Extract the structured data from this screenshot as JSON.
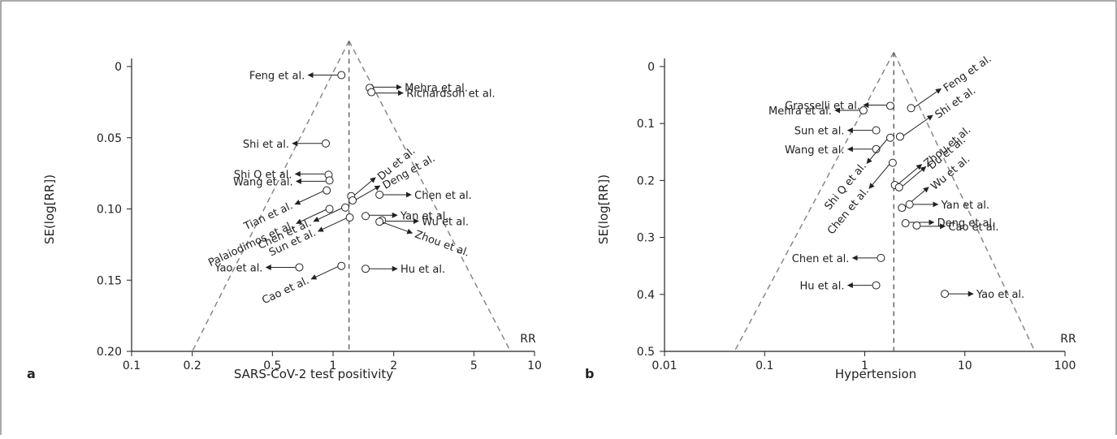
{
  "chart_data": [
    {
      "type": "scatter",
      "subtype": "funnel",
      "panel_label": "a",
      "xlabel": "SARS-CoV-2 test positivity",
      "ylabel": "SE(log[RR])",
      "xscale": "log",
      "yaxis_inverted": true,
      "xlim": [
        0.1,
        10
      ],
      "ylim": [
        0,
        0.2
      ],
      "x_ticks": [
        0.1,
        0.2,
        0.5,
        1,
        2,
        5,
        10
      ],
      "x_tick_labels": [
        "0.1",
        "0.2",
        "0.5",
        "1",
        "2",
        "5",
        "10"
      ],
      "y_ticks": [
        0,
        0.05,
        0.1,
        0.15,
        0.2
      ],
      "y_tick_labels": [
        "0",
        "0.05",
        "0.10",
        "0.15",
        "0.20"
      ],
      "rr_label": "RR",
      "pooled_estimate": 1.2,
      "funnel_apex": {
        "x": 1.2,
        "y": -0.018
      },
      "funnel_base": {
        "left": 0.2,
        "right": 7.6
      },
      "points": [
        {
          "label": "Feng et al.",
          "x": 1.1,
          "y": 0.006
        },
        {
          "label": "Mehra et al.",
          "x": 1.52,
          "y": 0.015
        },
        {
          "label": "Richardson et al.",
          "x": 1.55,
          "y": 0.018
        },
        {
          "label": "Shi et al.",
          "x": 0.92,
          "y": 0.054
        },
        {
          "label": "Shi Q et al.",
          "x": 0.95,
          "y": 0.076
        },
        {
          "label": "Wang et al.",
          "x": 0.96,
          "y": 0.08
        },
        {
          "label": "Tian et al.",
          "x": 0.93,
          "y": 0.087
        },
        {
          "label": "Du et al.",
          "x": 1.23,
          "y": 0.091
        },
        {
          "label": "Deng et al.",
          "x": 1.25,
          "y": 0.094
        },
        {
          "label": "Chen et al.",
          "x": 1.7,
          "y": 0.09
        },
        {
          "label": "Palaiodimos et al.",
          "x": 0.96,
          "y": 0.1
        },
        {
          "label": "Chen et al.",
          "x": 1.15,
          "y": 0.099
        },
        {
          "label": "Sun et al.",
          "x": 1.21,
          "y": 0.106
        },
        {
          "label": "Yan et al.",
          "x": 1.45,
          "y": 0.105
        },
        {
          "label": "Wu et al.",
          "x": 1.75,
          "y": 0.108
        },
        {
          "label": "Zhou et al.",
          "x": 1.7,
          "y": 0.109
        },
        {
          "label": "Yao et al.",
          "x": 0.68,
          "y": 0.141
        },
        {
          "label": "Cao et al.",
          "x": 1.1,
          "y": 0.14
        },
        {
          "label": "Hu et al.",
          "x": 1.45,
          "y": 0.142
        }
      ]
    },
    {
      "type": "scatter",
      "subtype": "funnel",
      "panel_label": "b",
      "xlabel": "Hypertension",
      "ylabel": "SE(log[RR])",
      "xscale": "log",
      "yaxis_inverted": true,
      "xlim": [
        0.01,
        100
      ],
      "ylim": [
        0,
        0.5
      ],
      "x_ticks": [
        0.01,
        0.1,
        1,
        10,
        100
      ],
      "x_tick_labels": [
        "0.01",
        "0.1",
        "1",
        "10",
        "100"
      ],
      "y_ticks": [
        0,
        0.1,
        0.2,
        0.3,
        0.4,
        0.5
      ],
      "y_tick_labels": [
        "0",
        "0.1",
        "0.2",
        "0.3",
        "0.4",
        "0.5"
      ],
      "rr_label": "RR",
      "pooled_estimate": 1.95,
      "funnel_apex": {
        "x": 1.95,
        "y": -0.025
      },
      "funnel_base": {
        "left": 0.05,
        "right": 50
      },
      "points": [
        {
          "label": "Grasselli et al.",
          "x": 1.8,
          "y": 0.069
        },
        {
          "label": "Feng et al.",
          "x": 2.9,
          "y": 0.073
        },
        {
          "label": "Mehra et al.",
          "x": 0.97,
          "y": 0.077
        },
        {
          "label": "Shi et al.",
          "x": 2.25,
          "y": 0.123
        },
        {
          "label": "Sun et al.",
          "x": 1.3,
          "y": 0.112
        },
        {
          "label": "Wang et al.",
          "x": 1.3,
          "y": 0.145
        },
        {
          "label": "Shi Q et al.",
          "x": 1.8,
          "y": 0.125
        },
        {
          "label": "Chen et al.",
          "x": 1.9,
          "y": 0.169
        },
        {
          "label": "Zhou et al.",
          "x": 2.0,
          "y": 0.208
        },
        {
          "label": "Du et al.",
          "x": 2.2,
          "y": 0.212
        },
        {
          "label": "Wu et al.",
          "x": 2.35,
          "y": 0.248
        },
        {
          "label": "Yan et al.",
          "x": 2.8,
          "y": 0.242
        },
        {
          "label": "Deng et al.",
          "x": 2.55,
          "y": 0.275
        },
        {
          "label": "Cao et al.",
          "x": 3.3,
          "y": 0.279
        },
        {
          "label": "Chen et al.",
          "x": 1.45,
          "y": 0.336
        },
        {
          "label": "Hu et al.",
          "x": 1.3,
          "y": 0.384
        },
        {
          "label": "Yao et al.",
          "x": 6.3,
          "y": 0.399
        }
      ]
    }
  ]
}
